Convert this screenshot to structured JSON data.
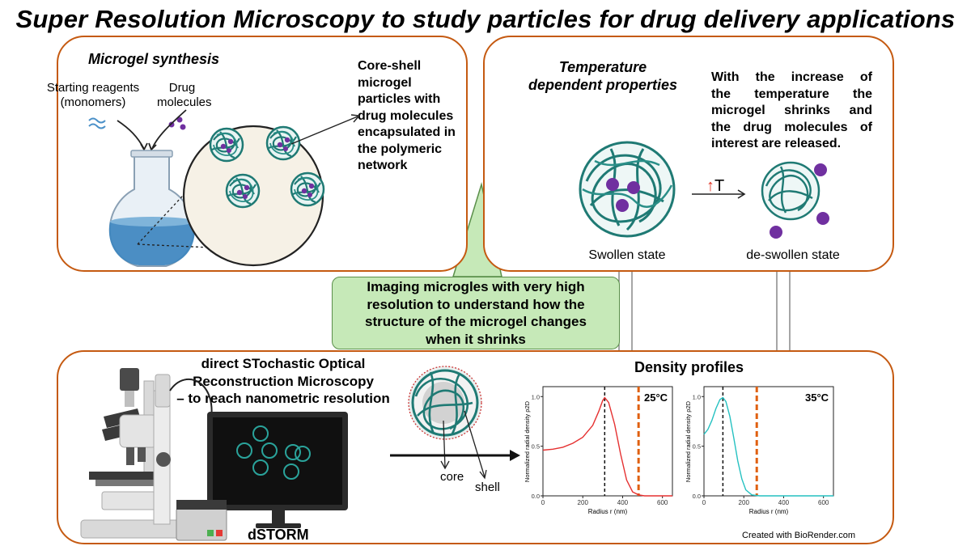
{
  "title": "Super Resolution Microscopy to study particles for drug delivery applications",
  "synthesis": {
    "heading": "Microgel synthesis",
    "reagents": "Starting reagents (monomers)",
    "drug": "Drug molecules",
    "core_shell": "Core-shell microgel particles with drug molecules encapsulated in the polymeric network",
    "core_shell_lines": [
      "Core-shell",
      "microgel",
      "particles with",
      "drug molecules",
      "encapsulated in",
      "the polymeric",
      "network"
    ]
  },
  "temperature": {
    "heading": "Temperature dependent properties",
    "heading_lines": [
      "Temperature",
      "dependent properties"
    ],
    "description_lines": [
      "With the increase of",
      "the temperature the",
      "microgel shrinks and",
      "the drug molecules of",
      "interest are released."
    ],
    "arrow_label": "T",
    "swollen": "Swollen state",
    "deswollen": "de-swollen state"
  },
  "callout": {
    "text": "Imaging microgles with very high resolution to understand how the structure of the microgel changes when it shrinks",
    "lines": [
      "Imaging microgles with very high",
      "resolution to understand how the",
      "structure of the microgel changes",
      "when it shrinks"
    ]
  },
  "dstorm": {
    "heading": "direct STochastic Optical Reconstruction Microscopy – to reach nanometric resolution",
    "heading_lines": [
      "direct STochastic Optical",
      "Reconstruction Microscopy",
      "– to reach nanometric resolution"
    ],
    "label": "dSTORM",
    "core": "core",
    "shell": "shell",
    "density_title": "Density profiles",
    "credit": "Created with BioRender.com"
  },
  "colors": {
    "panel_border": "#c55a11",
    "callout_fill": "#c6e9b8",
    "gel": "#1f7a74",
    "drug": "#7030a0",
    "plot_25": "#e53030",
    "plot_35": "#25c1c1",
    "dashed_orange": "#e06010"
  },
  "chart_data": [
    {
      "type": "line",
      "annotation": "25°C",
      "xlabel": "Radius r (nm)",
      "ylabel": "Normalized radial density ρ2D",
      "xlim": [
        0,
        650
      ],
      "ylim": [
        0,
        1.1
      ],
      "x_ticks": [
        "0",
        "200",
        "400",
        "600"
      ],
      "y_ticks": [
        "0.0",
        "0.5",
        "1.0"
      ],
      "x": [
        0,
        50,
        100,
        150,
        200,
        250,
        280,
        300,
        310,
        330,
        360,
        390,
        420,
        450,
        480,
        510,
        550,
        600,
        650
      ],
      "values": [
        0.46,
        0.47,
        0.49,
        0.53,
        0.59,
        0.71,
        0.85,
        0.96,
        0.99,
        0.94,
        0.72,
        0.42,
        0.16,
        0.04,
        0.01,
        0.0,
        0.0,
        0.0,
        0.0
      ],
      "vlines": [
        {
          "x": 310,
          "style": "dashed-black"
        },
        {
          "x": 480,
          "style": "dashed-orange"
        }
      ]
    },
    {
      "type": "line",
      "annotation": "35°C",
      "xlabel": "Radius r (nm)",
      "ylabel": "Normalized radial density ρ2D",
      "xlim": [
        0,
        650
      ],
      "ylim": [
        0,
        1.1
      ],
      "x_ticks": [
        "0",
        "200",
        "400",
        "600"
      ],
      "y_ticks": [
        "0.0",
        "0.5",
        "1.0"
      ],
      "x": [
        0,
        20,
        40,
        60,
        80,
        95,
        110,
        130,
        150,
        170,
        190,
        210,
        240,
        280,
        350,
        450,
        550,
        650
      ],
      "values": [
        0.62,
        0.67,
        0.76,
        0.88,
        0.97,
        0.99,
        0.95,
        0.8,
        0.58,
        0.35,
        0.17,
        0.06,
        0.01,
        0.0,
        0.0,
        0.0,
        0.0,
        0.0
      ],
      "vlines": [
        {
          "x": 95,
          "style": "dashed-black"
        },
        {
          "x": 265,
          "style": "dashed-orange"
        }
      ]
    }
  ]
}
